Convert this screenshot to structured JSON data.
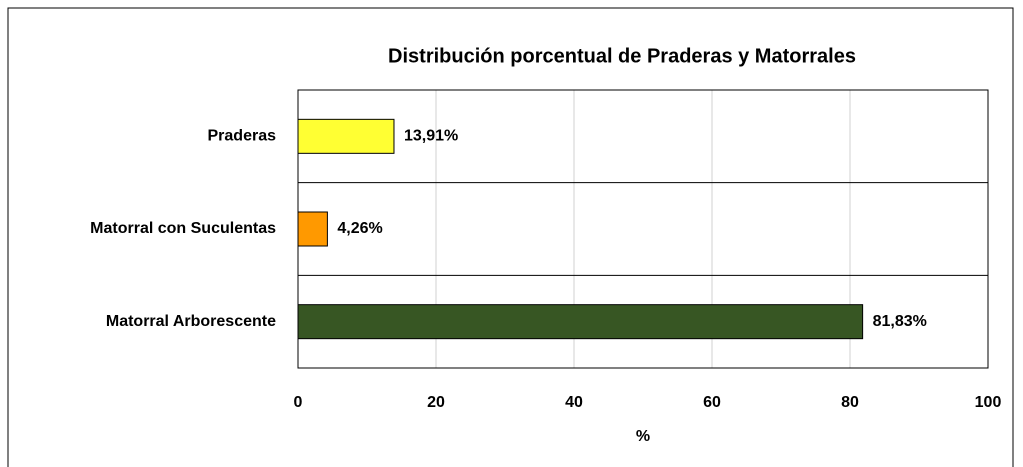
{
  "chart_data": {
    "type": "bar",
    "orientation": "horizontal",
    "title": "Distribución porcentual de Praderas y Matorrales",
    "categories": [
      "Praderas",
      "Matorral con Suculentas",
      "Matorral Arborescente"
    ],
    "values": [
      13.91,
      4.26,
      81.83
    ],
    "value_labels": [
      "13,91%",
      "4,26%",
      "81,83%"
    ],
    "colors": [
      "#ffff33",
      "#ff9900",
      "#375623"
    ],
    "xlabel": "%",
    "xlim": [
      0,
      100
    ],
    "xticks": [
      0,
      20,
      40,
      60,
      80,
      100
    ],
    "grid": true
  }
}
